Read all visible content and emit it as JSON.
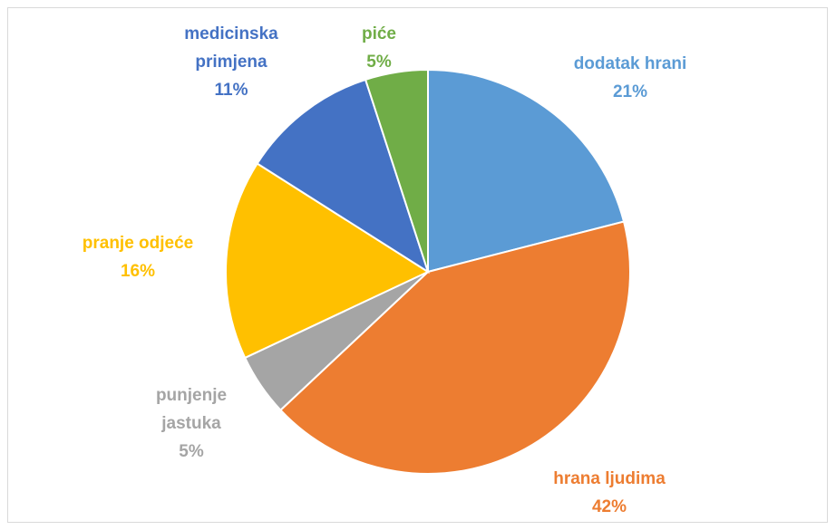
{
  "chart_data": {
    "type": "pie",
    "categories": [
      "dodatak hrani",
      "hrana ljudima",
      "punjenje jastuka",
      "pranje odjeće",
      "medicinska primjena",
      "piće"
    ],
    "values": [
      21,
      42,
      5,
      16,
      11,
      5
    ],
    "value_labels": [
      "21%",
      "42%",
      "5%",
      "16%",
      "11%",
      "5%"
    ],
    "colors": [
      "#5b9bd5",
      "#ed7d31",
      "#a5a5a5",
      "#ffc000",
      "#4472c4",
      "#70ad47"
    ]
  }
}
